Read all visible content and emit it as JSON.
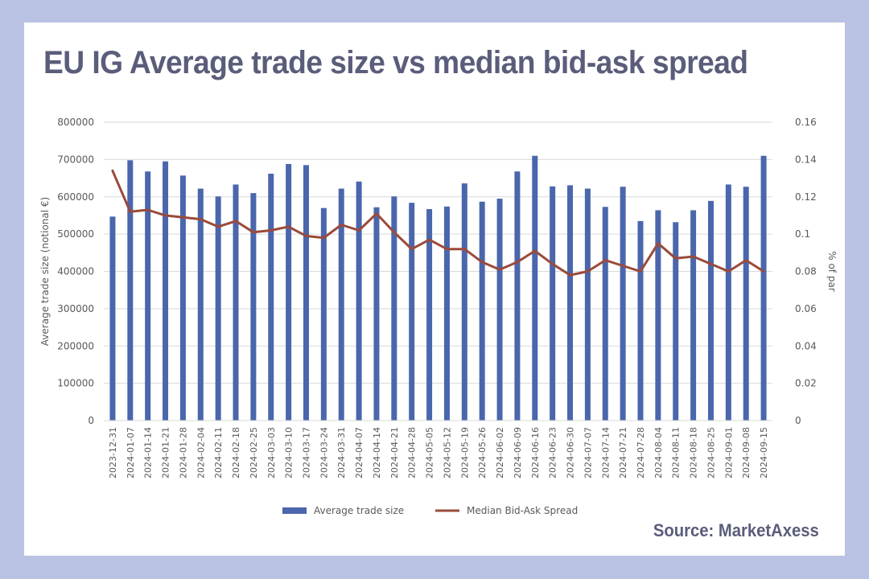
{
  "header": {
    "title": "EU IG Average trade size vs median bid-ask spread"
  },
  "footer": {
    "source": "Source: MarketAxess"
  },
  "colors": {
    "background": "#b9c2e3",
    "card": "#ffffff",
    "title_text": "#5a5d7a",
    "bar": "#4a66ac",
    "line": "#9b4a3a",
    "grid": "#d9d9d9",
    "axis_text": "#595959"
  },
  "chart_data": {
    "type": "bar",
    "categories": [
      "2023-12-31",
      "2024-01-07",
      "2024-01-14",
      "2024-01-21",
      "2024-01-28",
      "2024-02-04",
      "2024-02-11",
      "2024-02-18",
      "2024-02-25",
      "2024-03-03",
      "2024-03-10",
      "2024-03-17",
      "2024-03-24",
      "2024-03-31",
      "2024-04-07",
      "2024-04-14",
      "2024-04-21",
      "2024-04-28",
      "2024-05-05",
      "2024-05-12",
      "2024-05-19",
      "2024-05-26",
      "2024-06-02",
      "2024-06-09",
      "2024-06-16",
      "2024-06-23",
      "2024-06-30",
      "2024-07-07",
      "2024-07-14",
      "2024-07-21",
      "2024-07-28",
      "2024-08-04",
      "2024-08-11",
      "2024-08-18",
      "2024-08-25",
      "2024-09-01",
      "2024-09-08",
      "2024-09-15"
    ],
    "series": [
      {
        "name": "Average trade size",
        "type": "bar",
        "axis": "left",
        "values": [
          547000,
          698000,
          668000,
          695000,
          657000,
          622000,
          601000,
          633000,
          610000,
          662000,
          688000,
          685000,
          570000,
          622000,
          641000,
          572000,
          601000,
          584000,
          567000,
          574000,
          636000,
          587000,
          595000,
          668000,
          710000,
          628000,
          631000,
          622000,
          573000,
          627000,
          535000,
          564000,
          532000,
          564000,
          589000,
          633000,
          627000,
          710000
        ]
      },
      {
        "name": "Median Bid-Ask Spread",
        "type": "line",
        "axis": "right",
        "values": [
          0.134,
          0.112,
          0.113,
          0.11,
          0.109,
          0.108,
          0.104,
          0.107,
          0.101,
          0.102,
          0.104,
          0.099,
          0.098,
          0.105,
          0.102,
          0.111,
          0.101,
          0.092,
          0.097,
          0.092,
          0.092,
          0.085,
          0.081,
          0.085,
          0.091,
          0.084,
          0.078,
          0.08,
          0.086,
          0.083,
          0.08,
          0.095,
          0.087,
          0.088,
          0.084,
          0.08,
          0.086,
          0.08
        ]
      }
    ],
    "ylabel": "Average trade size (notional €)",
    "y2label": "% of par",
    "ylim": [
      0,
      800000
    ],
    "y2lim": [
      0,
      0.16
    ],
    "yticks": [
      "0",
      "100000",
      "200000",
      "300000",
      "400000",
      "500000",
      "600000",
      "700000",
      "800000"
    ],
    "y2ticks": [
      "0",
      "0.02",
      "0.04",
      "0.06",
      "0.08",
      "0.1",
      "0.12",
      "0.14",
      "0.16"
    ],
    "grid": true,
    "legend_position": "bottom"
  }
}
